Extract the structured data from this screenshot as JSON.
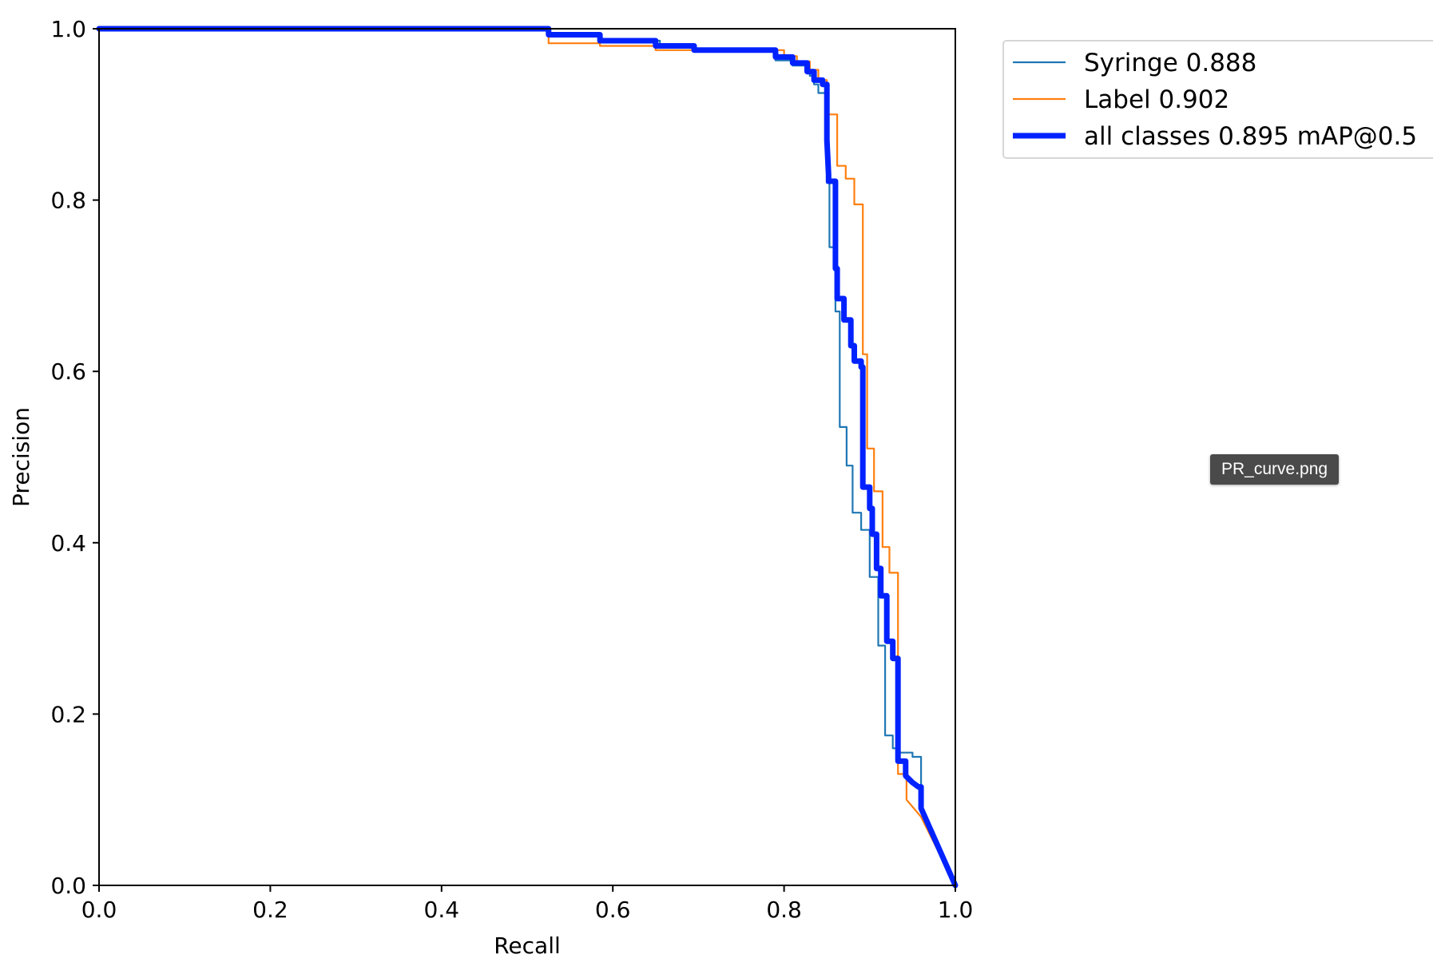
{
  "tooltip": "PR_curve.png",
  "chart_data": {
    "type": "line",
    "title": "",
    "xlabel": "Recall",
    "ylabel": "Precision",
    "xlim": [
      0,
      1
    ],
    "ylim": [
      0,
      1
    ],
    "xticks": [
      "0.0",
      "0.2",
      "0.4",
      "0.6",
      "0.8",
      "1.0"
    ],
    "yticks": [
      "0.0",
      "0.2",
      "0.4",
      "0.6",
      "0.8",
      "1.0"
    ],
    "grid": false,
    "legend_position": "upper-right-outside",
    "series": [
      {
        "name": "Syringe 0.888",
        "color": "#1f77b4",
        "points": [
          [
            0,
            1.0
          ],
          [
            0.525,
            1.0
          ],
          [
            0.525,
            0.993
          ],
          [
            0.585,
            0.993
          ],
          [
            0.585,
            0.986
          ],
          [
            0.655,
            0.986
          ],
          [
            0.655,
            0.982
          ],
          [
            0.695,
            0.982
          ],
          [
            0.695,
            0.975
          ],
          [
            0.79,
            0.975
          ],
          [
            0.79,
            0.963
          ],
          [
            0.81,
            0.963
          ],
          [
            0.81,
            0.957
          ],
          [
            0.83,
            0.957
          ],
          [
            0.83,
            0.945
          ],
          [
            0.835,
            0.945
          ],
          [
            0.835,
            0.935
          ],
          [
            0.84,
            0.935
          ],
          [
            0.84,
            0.925
          ],
          [
            0.85,
            0.925
          ],
          [
            0.85,
            0.82
          ],
          [
            0.853,
            0.82
          ],
          [
            0.853,
            0.745
          ],
          [
            0.86,
            0.745
          ],
          [
            0.86,
            0.67
          ],
          [
            0.865,
            0.67
          ],
          [
            0.865,
            0.535
          ],
          [
            0.873,
            0.535
          ],
          [
            0.873,
            0.49
          ],
          [
            0.88,
            0.49
          ],
          [
            0.88,
            0.435
          ],
          [
            0.89,
            0.435
          ],
          [
            0.89,
            0.415
          ],
          [
            0.9,
            0.415
          ],
          [
            0.9,
            0.36
          ],
          [
            0.91,
            0.36
          ],
          [
            0.91,
            0.28
          ],
          [
            0.918,
            0.28
          ],
          [
            0.918,
            0.175
          ],
          [
            0.927,
            0.175
          ],
          [
            0.927,
            0.16
          ],
          [
            0.932,
            0.16
          ],
          [
            0.932,
            0.155
          ],
          [
            0.95,
            0.155
          ],
          [
            0.95,
            0.15
          ],
          [
            0.96,
            0.15
          ],
          [
            0.96,
            0.09
          ],
          [
            1.0,
            0.0
          ]
        ]
      },
      {
        "name": "Label 0.902",
        "color": "#ff7f0e",
        "points": [
          [
            0,
            1.0
          ],
          [
            0.525,
            1.0
          ],
          [
            0.525,
            0.983
          ],
          [
            0.585,
            0.983
          ],
          [
            0.585,
            0.98
          ],
          [
            0.65,
            0.98
          ],
          [
            0.65,
            0.975
          ],
          [
            0.69,
            0.975
          ],
          [
            0.69,
            0.975
          ],
          [
            0.8,
            0.975
          ],
          [
            0.8,
            0.968
          ],
          [
            0.815,
            0.968
          ],
          [
            0.815,
            0.962
          ],
          [
            0.83,
            0.962
          ],
          [
            0.83,
            0.952
          ],
          [
            0.84,
            0.952
          ],
          [
            0.84,
            0.94
          ],
          [
            0.85,
            0.94
          ],
          [
            0.85,
            0.9
          ],
          [
            0.862,
            0.9
          ],
          [
            0.862,
            0.84
          ],
          [
            0.872,
            0.84
          ],
          [
            0.872,
            0.825
          ],
          [
            0.882,
            0.825
          ],
          [
            0.882,
            0.795
          ],
          [
            0.892,
            0.795
          ],
          [
            0.892,
            0.62
          ],
          [
            0.897,
            0.62
          ],
          [
            0.897,
            0.51
          ],
          [
            0.905,
            0.51
          ],
          [
            0.905,
            0.46
          ],
          [
            0.915,
            0.46
          ],
          [
            0.915,
            0.395
          ],
          [
            0.923,
            0.395
          ],
          [
            0.923,
            0.365
          ],
          [
            0.933,
            0.365
          ],
          [
            0.933,
            0.13
          ],
          [
            0.943,
            0.13
          ],
          [
            0.943,
            0.1
          ],
          [
            0.96,
            0.08
          ],
          [
            1.0,
            0.0
          ]
        ]
      },
      {
        "name": "all classes 0.895 mAP@0.5",
        "color": "#0022ff",
        "points": [
          [
            0,
            1.0
          ],
          [
            0.525,
            1.0
          ],
          [
            0.525,
            0.993
          ],
          [
            0.585,
            0.993
          ],
          [
            0.585,
            0.986
          ],
          [
            0.65,
            0.986
          ],
          [
            0.65,
            0.98
          ],
          [
            0.695,
            0.98
          ],
          [
            0.695,
            0.975
          ],
          [
            0.79,
            0.975
          ],
          [
            0.79,
            0.967
          ],
          [
            0.81,
            0.967
          ],
          [
            0.81,
            0.96
          ],
          [
            0.827,
            0.96
          ],
          [
            0.827,
            0.95
          ],
          [
            0.835,
            0.95
          ],
          [
            0.835,
            0.94
          ],
          [
            0.845,
            0.94
          ],
          [
            0.845,
            0.935
          ],
          [
            0.85,
            0.935
          ],
          [
            0.85,
            0.87
          ],
          [
            0.852,
            0.83
          ],
          [
            0.852,
            0.822
          ],
          [
            0.86,
            0.822
          ],
          [
            0.86,
            0.72
          ],
          [
            0.862,
            0.72
          ],
          [
            0.862,
            0.685
          ],
          [
            0.87,
            0.685
          ],
          [
            0.87,
            0.66
          ],
          [
            0.878,
            0.66
          ],
          [
            0.878,
            0.63
          ],
          [
            0.882,
            0.63
          ],
          [
            0.882,
            0.612
          ],
          [
            0.89,
            0.612
          ],
          [
            0.89,
            0.605
          ],
          [
            0.892,
            0.605
          ],
          [
            0.892,
            0.465
          ],
          [
            0.9,
            0.465
          ],
          [
            0.9,
            0.44
          ],
          [
            0.903,
            0.44
          ],
          [
            0.903,
            0.41
          ],
          [
            0.908,
            0.41
          ],
          [
            0.908,
            0.37
          ],
          [
            0.913,
            0.37
          ],
          [
            0.913,
            0.338
          ],
          [
            0.92,
            0.338
          ],
          [
            0.92,
            0.285
          ],
          [
            0.927,
            0.285
          ],
          [
            0.927,
            0.265
          ],
          [
            0.933,
            0.265
          ],
          [
            0.933,
            0.145
          ],
          [
            0.942,
            0.145
          ],
          [
            0.942,
            0.128
          ],
          [
            0.95,
            0.12
          ],
          [
            0.957,
            0.115
          ],
          [
            0.96,
            0.115
          ],
          [
            0.96,
            0.09
          ],
          [
            1.0,
            0.0
          ]
        ]
      }
    ]
  }
}
